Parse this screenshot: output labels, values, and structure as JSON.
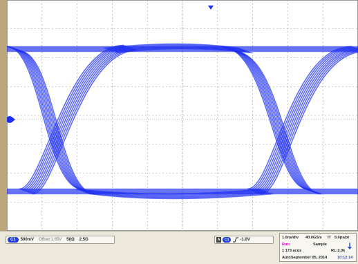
{
  "channel_bar": {
    "channel": "C1",
    "scale": "500mV",
    "offset": "Offset:1.65V",
    "impedance": "50Ω",
    "bandwidth": "2.5G"
  },
  "trigger_bar": {
    "source_letter": "A",
    "source_channel": "C1",
    "level": "-1.0V"
  },
  "status": {
    "timebase": "1.0ns/div",
    "sample_rate": "40.0GS/s",
    "mode_it": "IT",
    "resolution": "5.0ps/pt",
    "run_state": "Run",
    "acq_mode": "Sample",
    "acq_count": "1 173 acqs",
    "record_length": "RL:2.0k",
    "trigger_mode": "Auto",
    "date": "September 05, 2014",
    "time": "10:12:14"
  },
  "colors": {
    "trace": "#1e2ff0",
    "background": "#ffffff",
    "grid": "#9a9a9a",
    "left_bar": "#bba77a",
    "run_state": "#d200c0",
    "time": "#2a4bd0"
  },
  "icons": {
    "trigger_position_marker": "down-triangle-icon",
    "channel_ground_marker": "circle-arrow-icon",
    "trigger_edge": "rising-edge-icon",
    "acquisition_indicator": "down-arrow-icon"
  }
}
